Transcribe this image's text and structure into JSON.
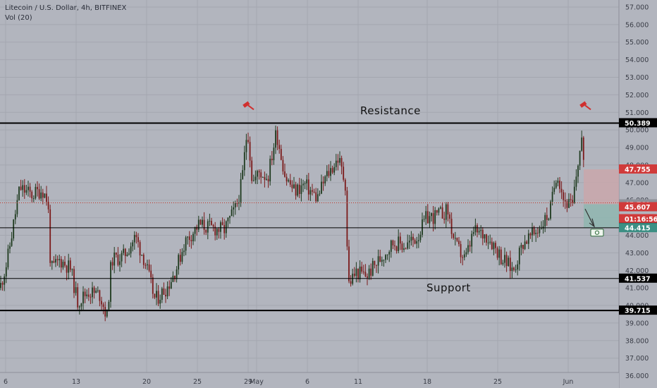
{
  "header": {
    "symbol_line": "Litecoin / U.S. Dollar, 4h, BITFINEX",
    "volume_label": "Vol (20)"
  },
  "colors": {
    "background": "#b2b5be",
    "grid": "#a4a7b0",
    "up_candle": "#1e3a1e",
    "down_candle": "#7b1a1a",
    "level_line": "#000000",
    "stop_zone": "#c9a7ab",
    "target_zone": "#8fb6b0",
    "dotted_price_line": "#c0392b",
    "marker_red": "#d0302f"
  },
  "annotations": {
    "resistance_label": "Resistance",
    "support_label": "Support",
    "top_marker_icons": [
      "pin-icon",
      "pin-icon"
    ],
    "target_icon": "money-icon"
  },
  "chart_data": {
    "type": "candlestick",
    "title": "Litecoin / U.S. Dollar, 4h, BITFINEX",
    "ylim": [
      35.3,
      57.4
    ],
    "y_ticks": [
      "36.000",
      "37.000",
      "38.000",
      "39.000",
      "40.000",
      "41.000",
      "42.000",
      "43.000",
      "44.000",
      "45.000",
      "46.000",
      "47.000",
      "48.000",
      "49.000",
      "50.000",
      "51.000",
      "52.000",
      "53.000",
      "54.000",
      "55.000",
      "56.000",
      "57.000"
    ],
    "x_ticks": [
      "6",
      "13",
      "20",
      "25",
      "29",
      "May",
      "6",
      "11",
      "18",
      "25",
      "Jun"
    ],
    "grid": true,
    "horizontal_levels": [
      {
        "name": "Resistance",
        "value": 50.389
      },
      {
        "value": 44.427
      },
      {
        "value": 41.537
      },
      {
        "name": "Support",
        "value": 39.715
      }
    ],
    "price_labels": [
      {
        "text": "50.389",
        "value": 50.389,
        "color": "#000000"
      },
      {
        "text": "47.755",
        "value": 47.755,
        "color": "#d03a3a"
      },
      {
        "text": "45.769",
        "value": 45.769,
        "color": "#8e9199"
      },
      {
        "text": "45.607",
        "value": 45.607,
        "color": "#d03a3a"
      },
      {
        "text": "01:16:56",
        "value": 45.1,
        "color": "#d03a3a"
      },
      {
        "text": "44.427",
        "value": 44.427,
        "color": "#000000"
      },
      {
        "text": "44.415",
        "value": 44.415,
        "color": "#3c8f84"
      },
      {
        "text": "41.537",
        "value": 41.537,
        "color": "#000000"
      },
      {
        "text": "39.715",
        "value": 39.715,
        "color": "#000000"
      }
    ],
    "position_tool": {
      "entry": 45.769,
      "stop": 47.755,
      "target": 44.415,
      "current_price": 45.607
    },
    "price_path": [
      [
        0,
        41.0
      ],
      [
        10,
        42.5
      ],
      [
        28,
        46.7
      ],
      [
        45,
        46.3
      ],
      [
        60,
        46.6
      ],
      [
        68,
        45.9
      ],
      [
        72,
        42.0
      ],
      [
        85,
        42.6
      ],
      [
        100,
        42.1
      ],
      [
        110,
        40.2
      ],
      [
        125,
        40.8
      ],
      [
        142,
        40.6
      ],
      [
        152,
        39.3
      ],
      [
        158,
        42.6
      ],
      [
        175,
        42.8
      ],
      [
        192,
        43.9
      ],
      [
        205,
        42.6
      ],
      [
        220,
        40.3
      ],
      [
        238,
        41.1
      ],
      [
        250,
        42.1
      ],
      [
        262,
        43.6
      ],
      [
        282,
        44.6
      ],
      [
        300,
        44.4
      ],
      [
        318,
        44.3
      ],
      [
        335,
        45.6
      ],
      [
        343,
        47.0
      ],
      [
        351,
        50.2
      ],
      [
        358,
        47.0
      ],
      [
        368,
        47.6
      ],
      [
        380,
        47.3
      ],
      [
        392,
        49.9
      ],
      [
        405,
        47.3
      ],
      [
        418,
        46.5
      ],
      [
        432,
        46.9
      ],
      [
        450,
        46.1
      ],
      [
        462,
        47.3
      ],
      [
        480,
        48.4
      ],
      [
        490,
        46.9
      ],
      [
        494,
        41.2
      ],
      [
        505,
        41.9
      ],
      [
        520,
        41.7
      ],
      [
        538,
        42.6
      ],
      [
        558,
        43.6
      ],
      [
        575,
        43.4
      ],
      [
        592,
        43.9
      ],
      [
        605,
        45.0
      ],
      [
        620,
        45.1
      ],
      [
        635,
        45.4
      ],
      [
        645,
        43.5
      ],
      [
        660,
        42.6
      ],
      [
        672,
        44.2
      ],
      [
        690,
        44.0
      ],
      [
        700,
        43.5
      ],
      [
        712,
        42.7
      ],
      [
        728,
        42.0
      ],
      [
        742,
        43.6
      ],
      [
        758,
        44.1
      ],
      [
        770,
        44.7
      ],
      [
        780,
        45.3
      ],
      [
        790,
        47.7
      ],
      [
        800,
        46.0
      ],
      [
        812,
        45.6
      ],
      [
        820,
        48.2
      ],
      [
        826,
        49.7
      ],
      [
        830,
        45.6
      ]
    ]
  }
}
